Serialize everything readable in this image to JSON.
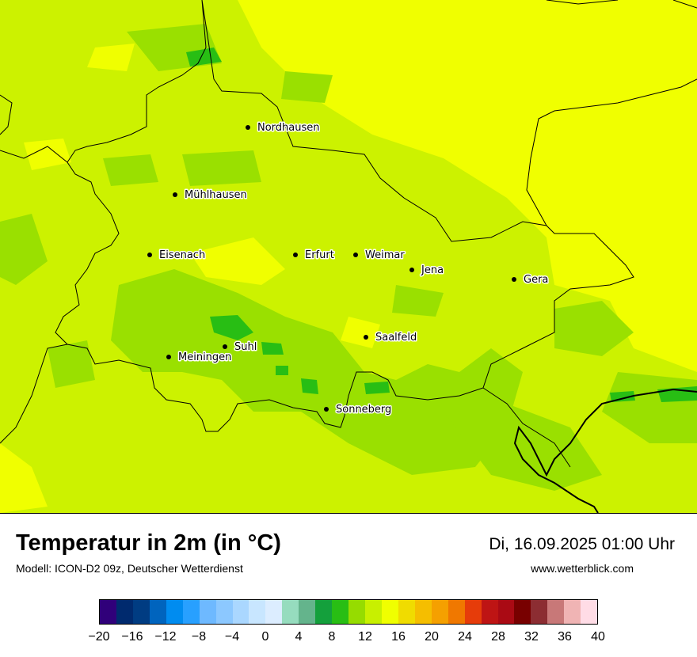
{
  "map": {
    "cities": [
      {
        "name": "Nordhausen"
      },
      {
        "name": "Mühlhausen"
      },
      {
        "name": "Eisenach"
      },
      {
        "name": "Erfurt"
      },
      {
        "name": "Weimar"
      },
      {
        "name": "Jena"
      },
      {
        "name": "Gera"
      },
      {
        "name": "Saalfeld"
      },
      {
        "name": "Suhl"
      },
      {
        "name": "Meiningen"
      },
      {
        "name": "Sonneberg"
      }
    ]
  },
  "footer": {
    "title": "Temperatur in 2m (in °C)",
    "model": "Modell: ICON-D2 09z, Deutscher Wetterdienst",
    "datetime": "Di, 16.09.2025 01:00 Uhr",
    "website": "www.wetterblick.com"
  },
  "legend": {
    "colors": [
      "#30007a",
      "#002a6e",
      "#003c82",
      "#0064be",
      "#008cf0",
      "#28a0ff",
      "#6eb9ff",
      "#8cc8ff",
      "#aad7ff",
      "#c8e6ff",
      "#dcedff",
      "#96dcbe",
      "#64b48c",
      "#14a03c",
      "#28be14",
      "#96dc00",
      "#c8f000",
      "#f0ff00",
      "#f0dc00",
      "#f5be00",
      "#f5a000",
      "#f07800",
      "#e63c0a",
      "#be1414",
      "#aa0a14",
      "#780000",
      "#8c2d32",
      "#c87878",
      "#f0b4b4",
      "#ffdce6"
    ],
    "ticks": [
      "−20",
      "−16",
      "−12",
      "−8",
      "−4",
      "0",
      "4",
      "8",
      "12",
      "16",
      "20",
      "24",
      "28",
      "32",
      "36",
      "40"
    ]
  }
}
